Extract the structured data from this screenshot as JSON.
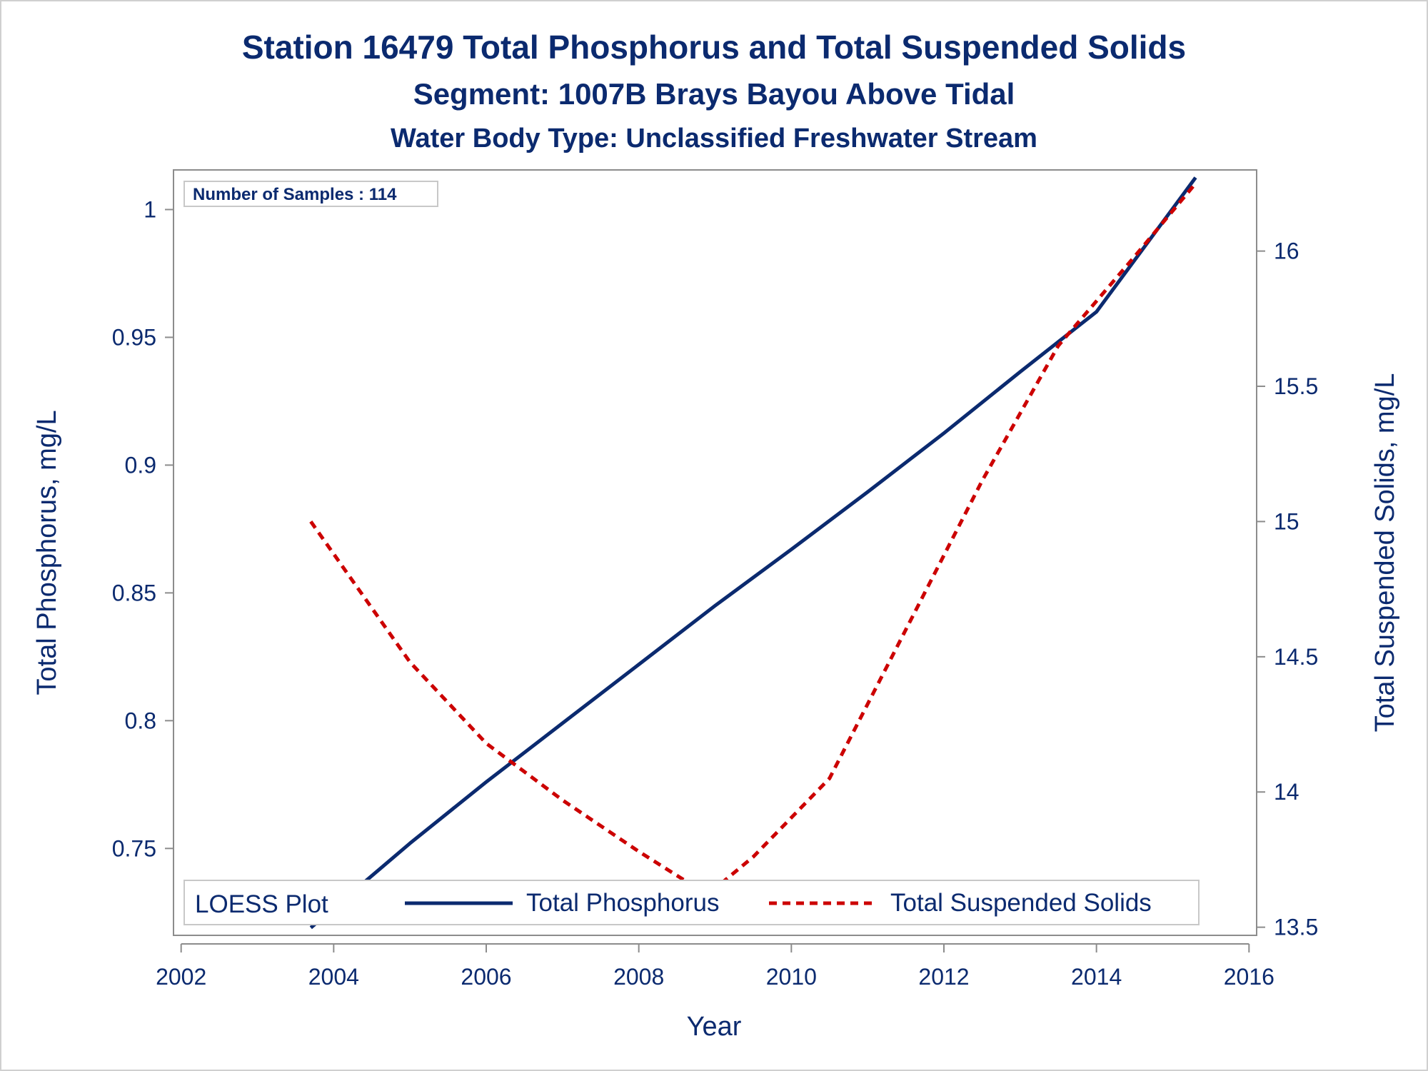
{
  "chart_data": {
    "type": "line",
    "title": "Station 16479  Total Phosphorus and Total Suspended Solids",
    "subtitle": "Segment: 1007B  Brays Bayou Above Tidal",
    "subtitle2": "Water Body Type: Unclassified Freshwater Stream",
    "xlabel": "Year",
    "ylabel_left": "Total Phosphorus, mg/L",
    "ylabel_right": "Total Suspended Solids, mg/L",
    "sample_note": "Number of Samples : 114",
    "xlim": [
      2001.9,
      2016.1
    ],
    "ylim_left": [
      0.716,
      1.0155
    ],
    "ylim_right": [
      13.47,
      16.3
    ],
    "x_ticks": [
      2002,
      2004,
      2006,
      2008,
      2010,
      2012,
      2014,
      2016
    ],
    "y_left_ticks": [
      0.75,
      0.8,
      0.85,
      0.9,
      0.95,
      1
    ],
    "y_right_ticks": [
      13.5,
      14,
      14.5,
      15,
      15.5,
      16
    ],
    "legend": {
      "title": "LOESS Plot",
      "position": "bottom-inside",
      "entries": [
        "Total Phosphorus",
        "Total Suspended Solids"
      ]
    },
    "series": [
      {
        "name": "Total Phosphorus",
        "axis": "left",
        "color": "#0b2a6f",
        "style": "solid",
        "x": [
          2003.7,
          2005.0,
          2006.0,
          2007.0,
          2008.0,
          2009.0,
          2010.0,
          2011.0,
          2012.0,
          2013.0,
          2014.0,
          2015.3
        ],
        "y": [
          0.719,
          0.752,
          0.776,
          0.799,
          0.822,
          0.845,
          0.867,
          0.8895,
          0.9125,
          0.9365,
          0.96,
          1.0125
        ]
      },
      {
        "name": "Total Suspended Solids",
        "axis": "right",
        "color": "#cc0000",
        "style": "dashed",
        "x": [
          2003.7,
          2005.0,
          2006.0,
          2007.0,
          2008.0,
          2008.9,
          2009.5,
          2010.5,
          2011.5,
          2012.5,
          2013.5,
          2014.5,
          2015.3
        ],
        "y": [
          15.0,
          14.48,
          14.18,
          13.97,
          13.78,
          13.62,
          13.76,
          14.05,
          14.6,
          15.15,
          15.65,
          15.98,
          16.25
        ]
      }
    ]
  }
}
